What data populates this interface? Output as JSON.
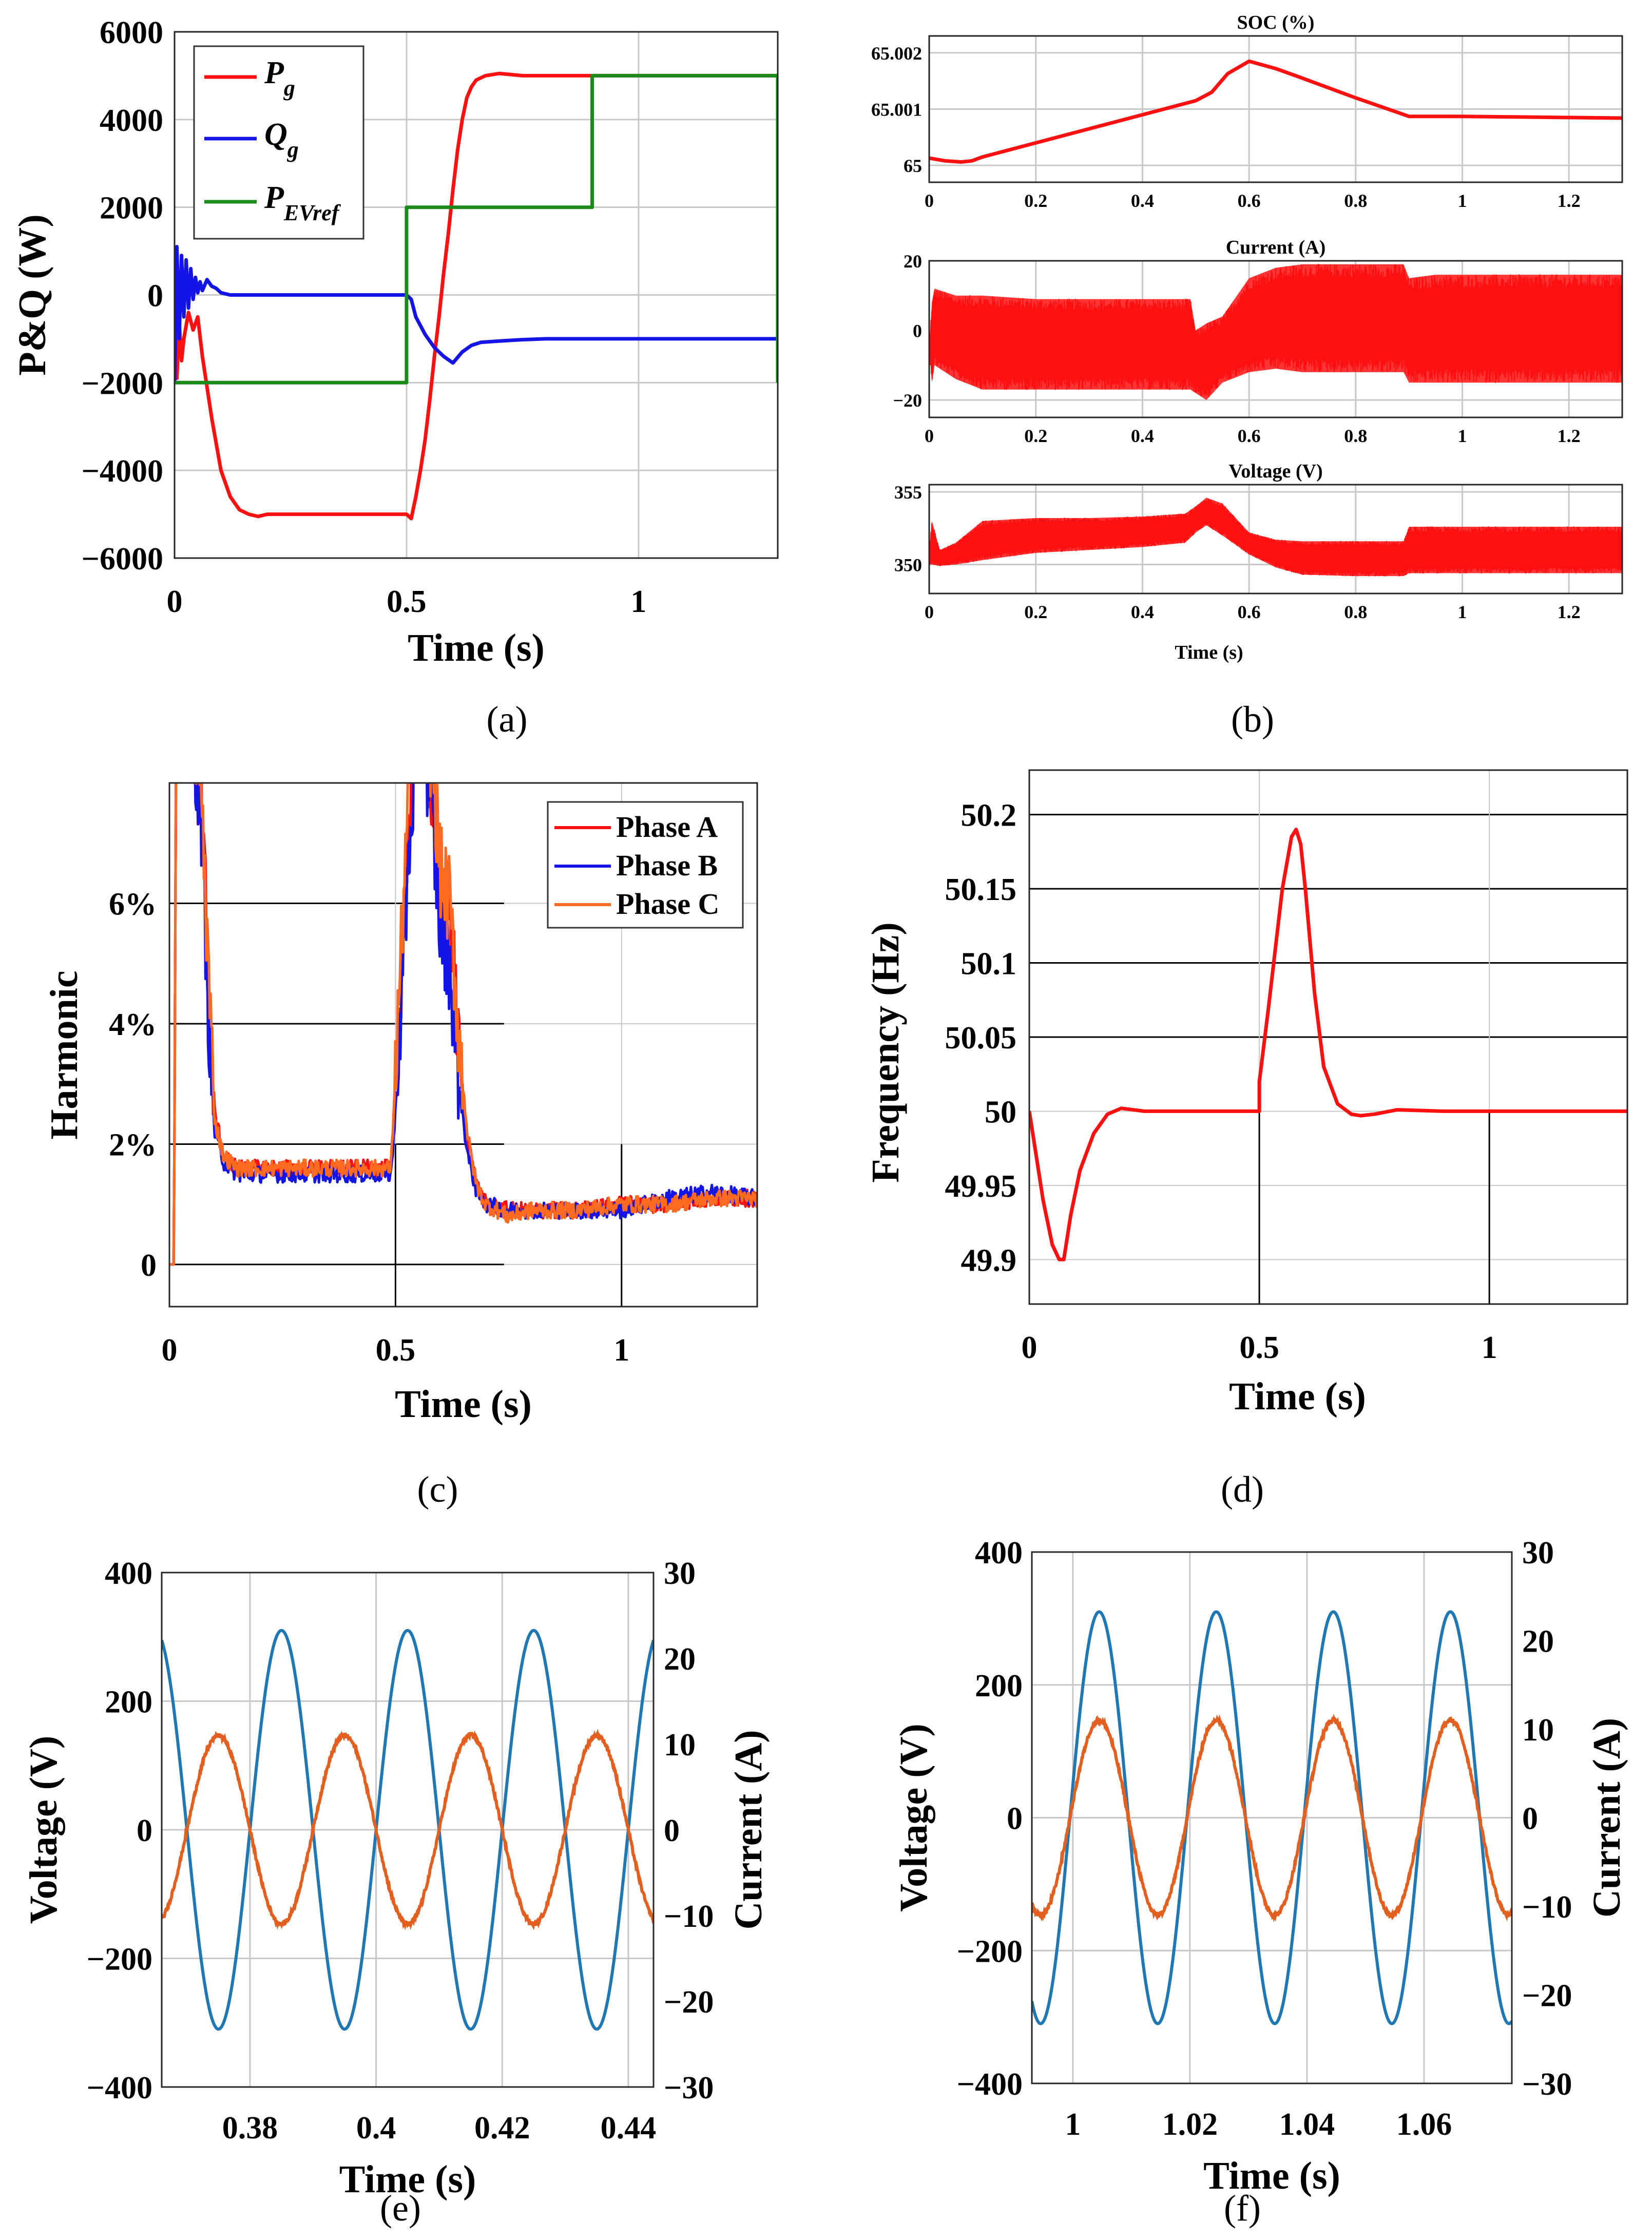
{
  "colors": {
    "red": "#ff1010",
    "blue": "#1414e6",
    "green": "#1a8a1a",
    "orange": "#ff6a21",
    "mblue": "#1f77b4",
    "morange": "#e35f1f"
  },
  "chart_data": [
    {
      "id": "a",
      "type": "line",
      "caption": "(a)",
      "title": "",
      "xlabel": "Time (s)",
      "ylabel": "P&Q (W)",
      "xlim": [
        0,
        1.3
      ],
      "ylim": [
        -6000,
        6000
      ],
      "xticks": [
        0,
        0.5,
        1
      ],
      "xtick_labels": [
        "0",
        "0.5",
        "1"
      ],
      "yticks": [
        -6000,
        -4000,
        -2000,
        0,
        2000,
        4000,
        6000
      ],
      "ytick_labels": [
        "−6000",
        "−4000",
        "−2000",
        "0",
        "2000",
        "4000",
        "6000"
      ],
      "legend": [
        {
          "base": "P",
          "sub": "g"
        },
        {
          "base": "Q",
          "sub": "g"
        },
        {
          "base": "P",
          "sub": "EVref"
        }
      ],
      "series": [
        {
          "name": "Pg",
          "x": [
            0,
            0.005,
            0.01,
            0.015,
            0.02,
            0.03,
            0.04,
            0.05,
            0.06,
            0.08,
            0.1,
            0.12,
            0.14,
            0.16,
            0.18,
            0.2,
            0.25,
            0.3,
            0.35,
            0.4,
            0.45,
            0.5,
            0.51,
            0.52,
            0.53,
            0.54,
            0.55,
            0.56,
            0.57,
            0.58,
            0.59,
            0.6,
            0.61,
            0.62,
            0.63,
            0.64,
            0.65,
            0.67,
            0.7,
            0.75,
            0.8,
            0.9,
            1.0,
            1.1,
            1.2,
            1.3
          ],
          "y": [
            -1800,
            -1900,
            -600,
            -1500,
            -1000,
            -400,
            -800,
            -500,
            -1400,
            -2800,
            -4000,
            -4600,
            -4900,
            -5000,
            -5050,
            -5000,
            -5000,
            -5000,
            -5000,
            -5000,
            -5000,
            -5000,
            -5100,
            -4600,
            -4000,
            -3300,
            -2400,
            -1400,
            -500,
            500,
            1400,
            2400,
            3300,
            4000,
            4500,
            4750,
            4900,
            5000,
            5050,
            5000,
            5000,
            5000,
            5000,
            5000,
            5000,
            5000
          ]
        },
        {
          "name": "Qg",
          "x": [
            0,
            0.005,
            0.01,
            0.015,
            0.02,
            0.025,
            0.03,
            0.035,
            0.04,
            0.045,
            0.05,
            0.055,
            0.06,
            0.07,
            0.08,
            0.09,
            0.1,
            0.12,
            0.15,
            0.2,
            0.3,
            0.4,
            0.5,
            0.51,
            0.52,
            0.54,
            0.56,
            0.58,
            0.6,
            0.62,
            0.64,
            0.66,
            0.7,
            0.75,
            0.8,
            0.9,
            1.0,
            1.1,
            1.2,
            1.3
          ],
          "y": [
            -2000,
            1100,
            -1000,
            900,
            -500,
            800,
            -300,
            600,
            -100,
            400,
            50,
            300,
            100,
            350,
            200,
            150,
            50,
            0,
            0,
            0,
            0,
            0,
            0,
            -100,
            -500,
            -900,
            -1200,
            -1400,
            -1550,
            -1300,
            -1150,
            -1080,
            -1050,
            -1020,
            -1000,
            -1000,
            -1000,
            -1000,
            -1000,
            -1000
          ]
        },
        {
          "name": "PEVref",
          "x": [
            0,
            0.5,
            0.5,
            0.9,
            0.9,
            1.3,
            1.3
          ],
          "y": [
            -2000,
            -2000,
            2000,
            2000,
            5000,
            5000,
            -2000
          ]
        }
      ]
    },
    {
      "id": "b1",
      "type": "line",
      "caption": "(b)",
      "title": "SOC (%)",
      "xlabel": "",
      "ylabel": "",
      "xlim": [
        0,
        1.3
      ],
      "ylim": [
        64.9997,
        65.0023
      ],
      "xticks": [
        0,
        0.2,
        0.4,
        0.6,
        0.8,
        1,
        1.2
      ],
      "xtick_labels": [
        "0",
        "0.2",
        "0.4",
        "0.6",
        "0.8",
        "1",
        "1.2"
      ],
      "yticks": [
        65,
        65.001,
        65.002
      ],
      "ytick_labels": [
        "65",
        "65.001",
        "65.002"
      ],
      "series": [
        {
          "name": "SOC",
          "x": [
            0,
            0.03,
            0.06,
            0.08,
            0.1,
            0.2,
            0.3,
            0.4,
            0.5,
            0.53,
            0.56,
            0.6,
            0.65,
            0.7,
            0.8,
            0.9,
            1.0,
            1.1,
            1.2,
            1.3
          ],
          "y": [
            65.00013,
            65.00008,
            65.00006,
            65.00008,
            65.00015,
            65.0004,
            65.00065,
            65.0009,
            65.00115,
            65.0013,
            65.00163,
            65.00185,
            65.00172,
            65.00155,
            65.0012,
            65.00087,
            65.00087,
            65.00086,
            65.00085,
            65.00084
          ]
        }
      ]
    },
    {
      "id": "b2",
      "type": "line",
      "title": "Current (A)",
      "xlim": [
        0,
        1.3
      ],
      "ylim": [
        -25,
        20
      ],
      "xticks": [
        0,
        0.2,
        0.4,
        0.6,
        0.8,
        1,
        1.2
      ],
      "xtick_labels": [
        "0",
        "0.2",
        "0.4",
        "0.6",
        "0.8",
        "1",
        "1.2"
      ],
      "yticks": [
        -20,
        0,
        20
      ],
      "ytick_labels": [
        "−20",
        "0",
        "20"
      ],
      "envelope": {
        "x": [
          0,
          0.005,
          0.01,
          0.05,
          0.1,
          0.2,
          0.3,
          0.4,
          0.49,
          0.5,
          0.52,
          0.55,
          0.6,
          0.65,
          0.7,
          0.8,
          0.89,
          0.9,
          0.95,
          1.0,
          1.1,
          1.2,
          1.3
        ],
        "upper": [
          -5,
          8,
          12,
          10,
          10,
          9,
          9,
          9,
          9,
          0,
          2,
          4,
          15,
          18,
          19,
          19,
          19,
          15,
          16,
          16,
          16,
          16,
          16
        ],
        "lower": [
          -5,
          -15,
          -10,
          -14,
          -17,
          -17,
          -17,
          -17,
          -17,
          -18,
          -20,
          -15,
          -12,
          -11,
          -12,
          -12,
          -12,
          -15,
          -15,
          -15,
          -15,
          -15,
          -15
        ]
      }
    },
    {
      "id": "b3",
      "type": "line",
      "title": "Voltage (V)",
      "xlabel": "Time (s)",
      "xlim": [
        0,
        1.3
      ],
      "ylim": [
        348,
        355.5
      ],
      "xticks": [
        0,
        0.2,
        0.4,
        0.6,
        0.8,
        1,
        1.2
      ],
      "xtick_labels": [
        "0",
        "0.2",
        "0.4",
        "0.6",
        "0.8",
        "1",
        "1.2"
      ],
      "yticks": [
        350,
        355
      ],
      "ytick_labels": [
        "350",
        "355"
      ],
      "envelope": {
        "x": [
          0,
          0.005,
          0.02,
          0.05,
          0.1,
          0.2,
          0.3,
          0.4,
          0.48,
          0.5,
          0.52,
          0.55,
          0.6,
          0.65,
          0.7,
          0.8,
          0.89,
          0.9,
          0.95,
          1.0,
          1.1,
          1.2,
          1.3
        ],
        "upper": [
          351,
          353,
          351,
          351.5,
          353,
          353.2,
          353.2,
          353.3,
          353.5,
          354,
          354.6,
          354.2,
          352.2,
          351.7,
          351.6,
          351.6,
          351.6,
          352.6,
          352.6,
          352.6,
          352.6,
          352.6,
          352.6
        ],
        "lower": [
          350,
          350,
          349.9,
          350,
          350.3,
          350.8,
          351,
          351.2,
          351.5,
          352.2,
          352.7,
          352,
          350.7,
          349.8,
          349.3,
          349.2,
          349.2,
          349.4,
          349.4,
          349.4,
          349.4,
          349.4,
          349.4
        ]
      }
    },
    {
      "id": "c",
      "type": "line",
      "caption": "(c)",
      "xlabel": "Time (s)",
      "ylabel": "Harmonic",
      "xlim": [
        0,
        1.3
      ],
      "ylim": [
        -0.7,
        8
      ],
      "xticks": [
        0,
        0.5,
        1
      ],
      "xtick_labels": [
        "0",
        "0.5",
        "1"
      ],
      "yticks": [
        0,
        2,
        4,
        6
      ],
      "ytick_labels": [
        "0",
        "2%",
        "4%",
        "6%"
      ],
      "legend": [
        "Phase A",
        "Phase B",
        "Phase C"
      ],
      "series": [
        {
          "name": "Phase A",
          "x": [
            0,
            0.01,
            0.015,
            0.02,
            0.03,
            0.05,
            0.07,
            0.09,
            0.1,
            0.12,
            0.15,
            0.2,
            0.3,
            0.4,
            0.49,
            0.5,
            0.52,
            0.54,
            0.56,
            0.58,
            0.6,
            0.62,
            0.64,
            0.66,
            0.68,
            0.7,
            0.75,
            0.8,
            0.9,
            1.0,
            1.1,
            1.2,
            1.3
          ],
          "y": [
            0,
            0,
            9,
            9,
            9,
            9,
            8,
            4,
            2.5,
            1.8,
            1.6,
            1.6,
            1.6,
            1.6,
            1.6,
            3,
            6,
            8.5,
            9,
            8,
            6,
            6,
            3.5,
            2,
            1.3,
            1.0,
            0.9,
            0.9,
            0.9,
            1.0,
            1.0,
            1.1,
            1.1
          ]
        },
        {
          "name": "Phase B",
          "x": [
            0,
            0.01,
            0.015,
            0.02,
            0.03,
            0.05,
            0.07,
            0.09,
            0.1,
            0.12,
            0.15,
            0.2,
            0.3,
            0.4,
            0.49,
            0.5,
            0.52,
            0.54,
            0.56,
            0.58,
            0.6,
            0.62,
            0.64,
            0.66,
            0.68,
            0.7,
            0.75,
            0.8,
            0.9,
            1.0,
            1.1,
            1.2,
            1.3
          ],
          "y": [
            0,
            0,
            9,
            9,
            9,
            9,
            7.5,
            3.5,
            2.2,
            1.7,
            1.5,
            1.5,
            1.5,
            1.5,
            1.5,
            2.5,
            5.5,
            8,
            9,
            7.5,
            5.5,
            5,
            3,
            1.8,
            1.2,
            1.0,
            0.9,
            0.9,
            0.9,
            0.9,
            1.1,
            1.2,
            1.1
          ]
        },
        {
          "name": "Phase C",
          "x": [
            0,
            0.01,
            0.015,
            0.02,
            0.03,
            0.05,
            0.07,
            0.09,
            0.1,
            0.12,
            0.15,
            0.2,
            0.3,
            0.4,
            0.49,
            0.5,
            0.52,
            0.54,
            0.56,
            0.58,
            0.6,
            0.62,
            0.64,
            0.66,
            0.68,
            0.7,
            0.75,
            0.8,
            0.9,
            1.0,
            1.1,
            1.2,
            1.3
          ],
          "y": [
            0,
            0,
            9,
            9,
            9,
            9,
            8,
            4.2,
            2.4,
            1.8,
            1.6,
            1.6,
            1.6,
            1.6,
            1.6,
            3.2,
            6.5,
            9,
            9,
            8.5,
            6.5,
            6,
            3.8,
            2.1,
            1.3,
            1.0,
            0.8,
            0.9,
            0.9,
            1.0,
            1.0,
            1.1,
            1.1
          ]
        }
      ]
    },
    {
      "id": "d",
      "type": "line",
      "caption": "(d)",
      "xlabel": "Time (s)",
      "ylabel": "Frequency (Hz)",
      "xlim": [
        0,
        1.3
      ],
      "ylim": [
        49.87,
        50.23
      ],
      "xticks": [
        0,
        0.5,
        1
      ],
      "xtick_labels": [
        "0",
        "0.5",
        "1"
      ],
      "yticks": [
        49.9,
        49.95,
        50,
        50.05,
        50.1,
        50.15,
        50.2
      ],
      "ytick_labels": [
        "49.9",
        "49.95",
        "50",
        "50.05",
        "50.1",
        "50.15",
        "50.2"
      ],
      "series": [
        {
          "name": "Frequency",
          "x": [
            0,
            0.01,
            0.03,
            0.05,
            0.065,
            0.075,
            0.09,
            0.11,
            0.14,
            0.17,
            0.2,
            0.25,
            0.3,
            0.4,
            0.5,
            0.5,
            0.52,
            0.55,
            0.57,
            0.58,
            0.59,
            0.6,
            0.62,
            0.64,
            0.67,
            0.7,
            0.72,
            0.75,
            0.8,
            0.9,
            1.0,
            1.1,
            1.2,
            1.3
          ],
          "y": [
            50,
            49.98,
            49.94,
            49.91,
            49.9,
            49.9,
            49.93,
            49.96,
            49.985,
            49.998,
            50.002,
            50,
            50,
            50,
            50,
            50.02,
            50.07,
            50.15,
            50.185,
            50.19,
            50.18,
            50.15,
            50.08,
            50.03,
            50.005,
            49.998,
            49.997,
            49.998,
            50.001,
            50,
            50,
            50,
            50,
            50
          ]
        }
      ]
    },
    {
      "id": "e",
      "type": "line",
      "caption": "(e)",
      "xlabel": "Time (s)",
      "ylabel": "Voltage (V)",
      "y2label": "Current (A)",
      "xlim": [
        0.366,
        0.444
      ],
      "ylim": [
        -400,
        400
      ],
      "y2lim": [
        -30,
        30
      ],
      "xticks": [
        0.38,
        0.4,
        0.42,
        0.44
      ],
      "xtick_labels": [
        "0.38",
        "0.4",
        "0.42",
        "0.44"
      ],
      "yticks": [
        -400,
        -200,
        0,
        200,
        400
      ],
      "ytick_labels": [
        "−400",
        "−200",
        "0",
        "200",
        "400"
      ],
      "y2ticks": [
        -30,
        -20,
        -10,
        0,
        10,
        20,
        30
      ],
      "y2tick_labels": [
        "−30",
        "−20",
        "−10",
        "0",
        "10",
        "20",
        "30"
      ],
      "sine": {
        "voltage_amp": 310,
        "current_amp": 11,
        "frequency_hz": 50,
        "voltage_peak_time": 0.385,
        "current_peak_time": 0.375
      }
    },
    {
      "id": "f",
      "type": "line",
      "caption": "(f)",
      "xlabel": "Time (s)",
      "ylabel": "Voltage (V)",
      "y2label": "Current (A)",
      "xlim": [
        0.993,
        1.075
      ],
      "ylim": [
        -400,
        400
      ],
      "y2lim": [
        -30,
        30
      ],
      "xticks": [
        1,
        1.02,
        1.04,
        1.06
      ],
      "xtick_labels": [
        "1",
        "1.02",
        "1.04",
        "1.06"
      ],
      "yticks": [
        -400,
        -200,
        0,
        200,
        400
      ],
      "ytick_labels": [
        "−400",
        "−200",
        "0",
        "200",
        "400"
      ],
      "y2ticks": [
        -30,
        -20,
        -10,
        0,
        10,
        20,
        30
      ],
      "y2tick_labels": [
        "−30",
        "−20",
        "−10",
        "0",
        "10",
        "20",
        "30"
      ],
      "sine": {
        "voltage_amp": 310,
        "current_amp": 11,
        "frequency_hz": 50,
        "voltage_peak_time": 1.0045,
        "current_peak_time": 1.0045
      }
    }
  ]
}
